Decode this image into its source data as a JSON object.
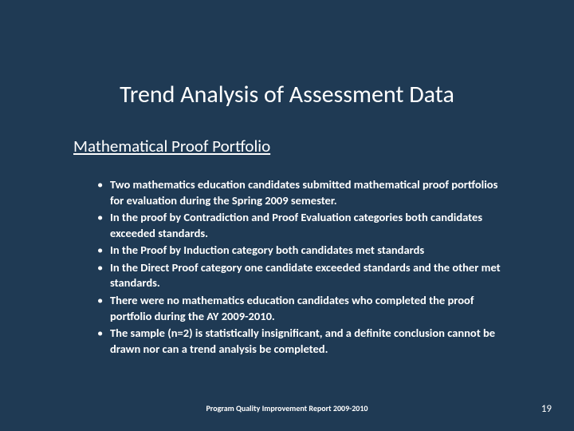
{
  "slide": {
    "background_color": "#1f3a54",
    "text_color": "#ffffff",
    "title": "Trend Analysis of Assessment Data",
    "title_fontsize": 30,
    "subtitle": "Mathematical Proof Portfolio",
    "subtitle_fontsize": 21,
    "subtitle_underline": true,
    "bullets": [
      "Two mathematics education candidates submitted mathematical proof portfolios for evaluation during the Spring 2009 semester.",
      "In the proof by Contradiction and Proof Evaluation categories both candidates exceeded standards.",
      "In the Proof by Induction category both candidates met standards",
      "In the Direct Proof category one candidate exceeded standards and the other met standards.",
      "There were no mathematics education candidates who completed the proof portfolio during the AY 2009-2010.",
      "The sample (n=2) is statistically insignificant, and a definite conclusion cannot be drawn nor can a trend analysis be completed."
    ],
    "bullet_fontsize": 14.5,
    "bullet_fontweight": 600,
    "footer": "Program Quality Improvement Report 2009-2010",
    "footer_fontsize": 10,
    "page_number": "19",
    "pagenum_fontsize": 13
  }
}
